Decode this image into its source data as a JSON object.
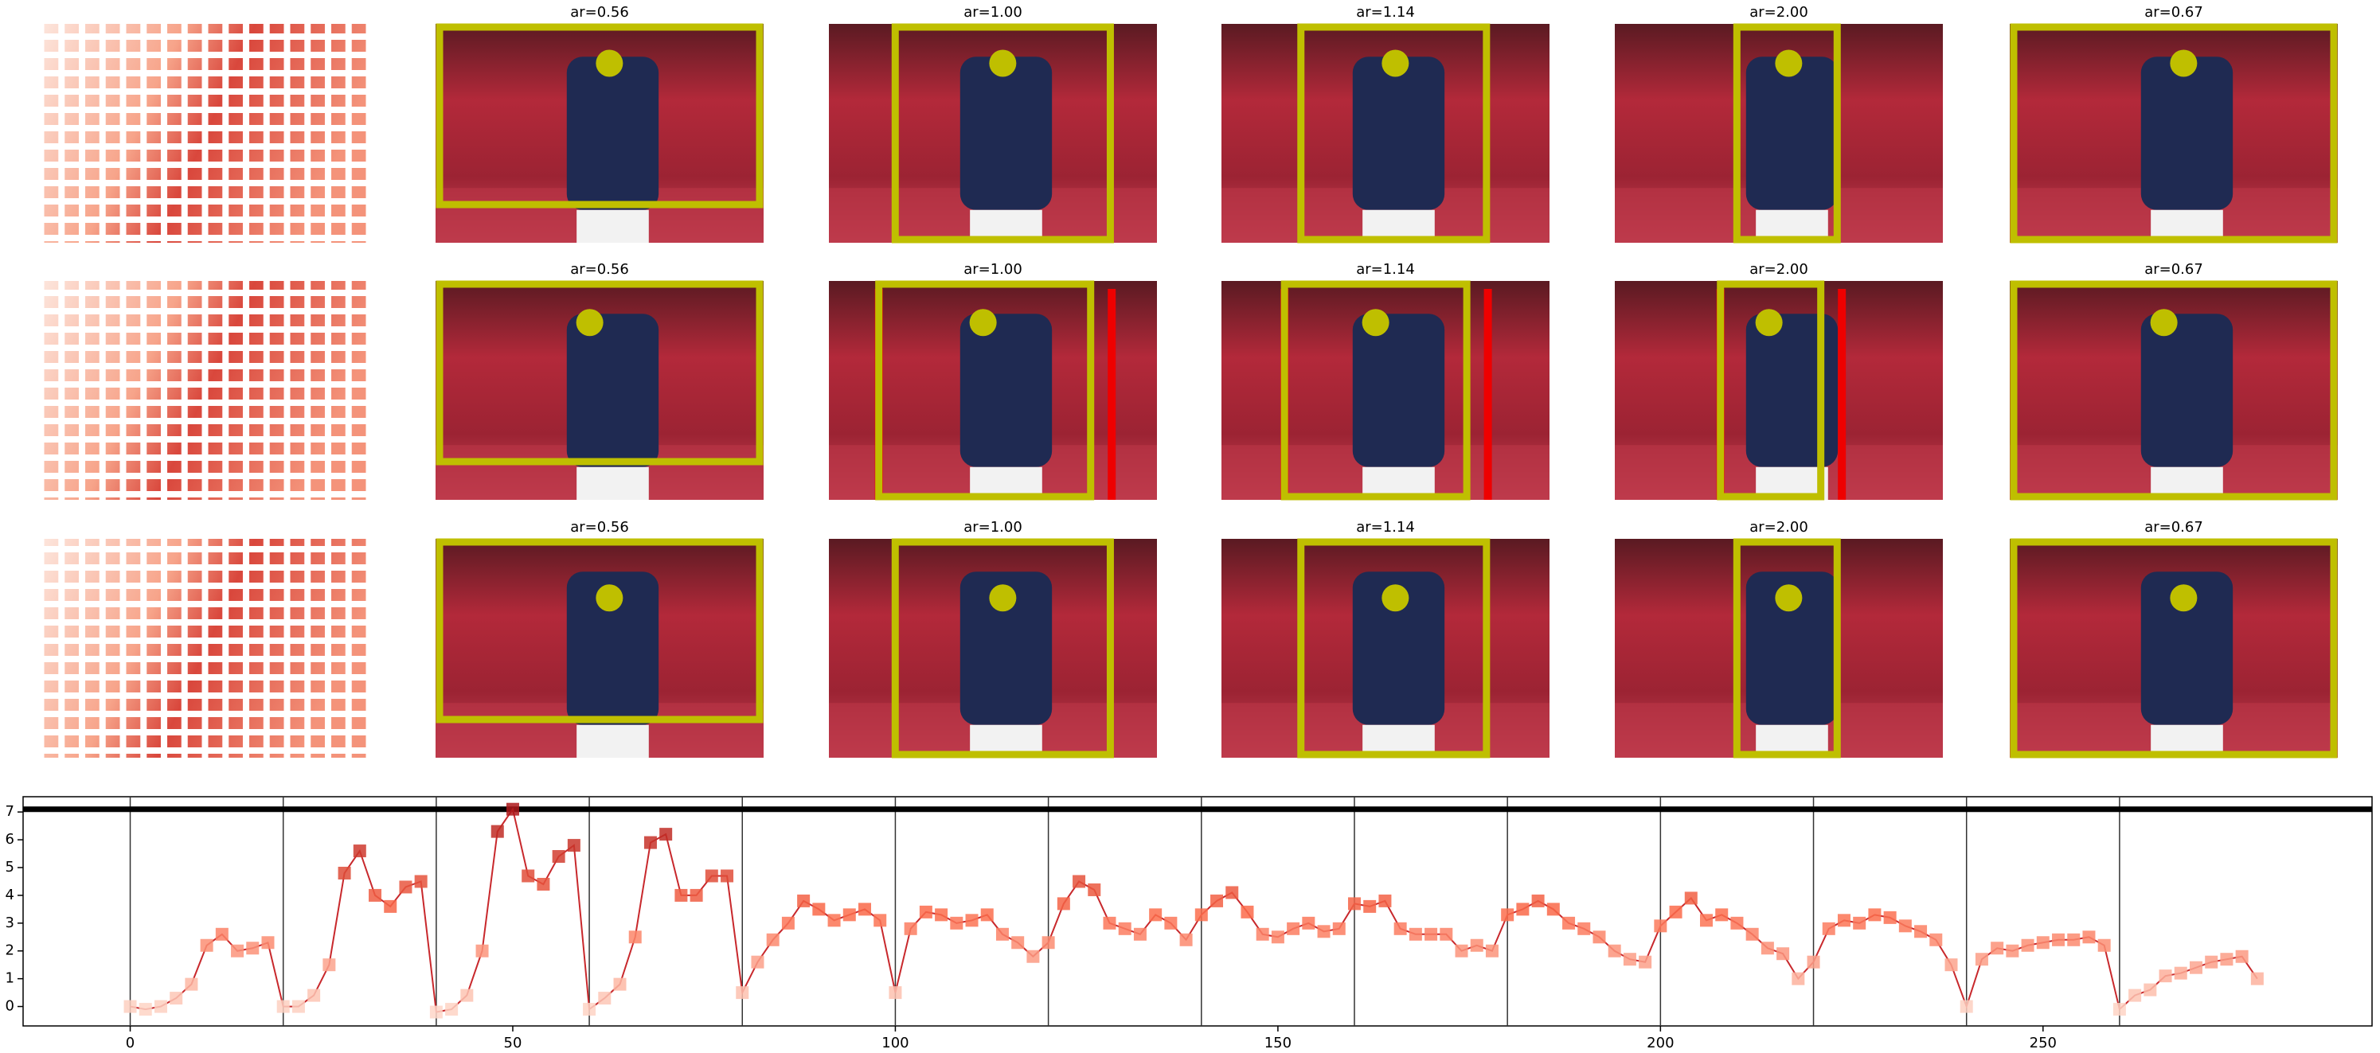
{
  "panel_rows": [
    {
      "titles": [
        "ar=0.56",
        "ar=1.00",
        "ar=1.14",
        "ar=2.00",
        "ar=0.67"
      ]
    },
    {
      "titles": [
        "ar=0.56",
        "ar=1.00",
        "ar=1.14",
        "ar=2.00",
        "ar=0.67"
      ]
    },
    {
      "titles": [
        "ar=0.56",
        "ar=1.00",
        "ar=1.14",
        "ar=2.00",
        "ar=0.67"
      ]
    }
  ],
  "chart_data": {
    "type": "line",
    "marker": "square",
    "x": [
      0,
      2,
      4,
      6,
      8,
      10,
      12,
      14,
      16,
      18,
      20,
      22,
      24,
      26,
      28,
      30,
      32,
      34,
      36,
      38,
      40,
      42,
      44,
      46,
      48,
      50,
      52,
      54,
      56,
      58,
      60,
      62,
      64,
      66,
      68,
      70,
      72,
      74,
      76,
      78,
      80,
      82,
      84,
      86,
      88,
      90,
      92,
      94,
      96,
      98,
      100,
      102,
      104,
      106,
      108,
      110,
      112,
      114,
      116,
      118,
      120,
      122,
      124,
      126,
      128,
      130,
      132,
      134,
      136,
      138,
      140,
      142,
      144,
      146,
      148,
      150,
      152,
      154,
      156,
      158,
      160,
      162,
      164,
      166,
      168,
      170,
      172,
      174,
      176,
      178,
      180,
      182,
      184,
      186,
      188,
      190,
      192,
      194,
      196,
      198,
      200,
      202,
      204,
      206,
      208,
      210,
      212,
      214,
      216,
      218,
      220,
      222,
      224,
      226,
      228,
      230,
      232,
      234,
      236,
      238,
      240,
      242,
      244,
      246,
      248,
      250,
      252,
      254,
      256,
      258,
      260,
      262,
      264,
      266,
      268,
      270,
      272,
      274,
      276,
      278
    ],
    "series": [
      {
        "color": "#c8282c",
        "values": [
          0,
          -0.1,
          0,
          0.3,
          0.8,
          2.2,
          2.6,
          2.0,
          2.1,
          2.3,
          0,
          0,
          0.4,
          1.5,
          4.8,
          5.6,
          4.0,
          3.6,
          4.3,
          4.5,
          -0.2,
          -0.1,
          0.4,
          2.0,
          6.3,
          7.1,
          4.7,
          4.4,
          5.4,
          5.8,
          -0.1,
          0.3,
          0.8,
          2.5,
          5.9,
          6.2,
          4.0,
          4.0,
          4.7,
          4.7,
          0.5,
          1.6,
          2.4,
          3.0,
          3.8,
          3.5,
          3.1,
          3.3,
          3.5,
          3.1,
          0.5,
          2.8,
          3.4,
          3.3,
          3.0,
          3.1,
          3.3,
          2.6,
          2.3,
          1.8,
          2.3,
          3.7,
          4.5,
          4.2,
          3.0,
          2.8,
          2.6,
          3.3,
          3.0,
          2.4,
          3.3,
          3.8,
          4.1,
          3.4,
          2.6,
          2.5,
          2.8,
          3.0,
          2.7,
          2.8,
          3.7,
          3.6,
          3.8,
          2.8,
          2.6,
          2.6,
          2.6,
          2.0,
          2.2,
          2.0,
          3.3,
          3.5,
          3.8,
          3.5,
          3.0,
          2.8,
          2.5,
          2.0,
          1.7,
          1.6,
          2.9,
          3.4,
          3.9,
          3.1,
          3.3,
          3.0,
          2.6,
          2.1,
          1.9,
          1.0,
          1.6,
          2.8,
          3.1,
          3.0,
          3.3,
          3.2,
          2.9,
          2.7,
          2.4,
          1.5,
          0,
          1.7,
          2.1,
          2.0,
          2.2,
          2.3,
          2.4,
          2.4,
          2.5,
          2.2,
          -0.1,
          0.4,
          0.6,
          1.1,
          1.2,
          1.4,
          1.6,
          1.7,
          1.8,
          1.0
        ]
      }
    ],
    "marker_colormap": [
      "#fee5d9",
      "#fb6a4a",
      "#a50f15"
    ],
    "vlines": [
      0,
      20,
      40,
      60,
      80,
      100,
      120,
      140,
      160,
      180,
      200,
      220,
      240,
      260
    ],
    "hline": 7.1,
    "xlim": [
      -14,
      293
    ],
    "ylim": [
      -0.7,
      7.55
    ],
    "xticks": [
      0,
      50,
      100,
      150,
      200,
      250
    ],
    "yticks": [
      0,
      1,
      2,
      3,
      4,
      5,
      6,
      7
    ]
  }
}
